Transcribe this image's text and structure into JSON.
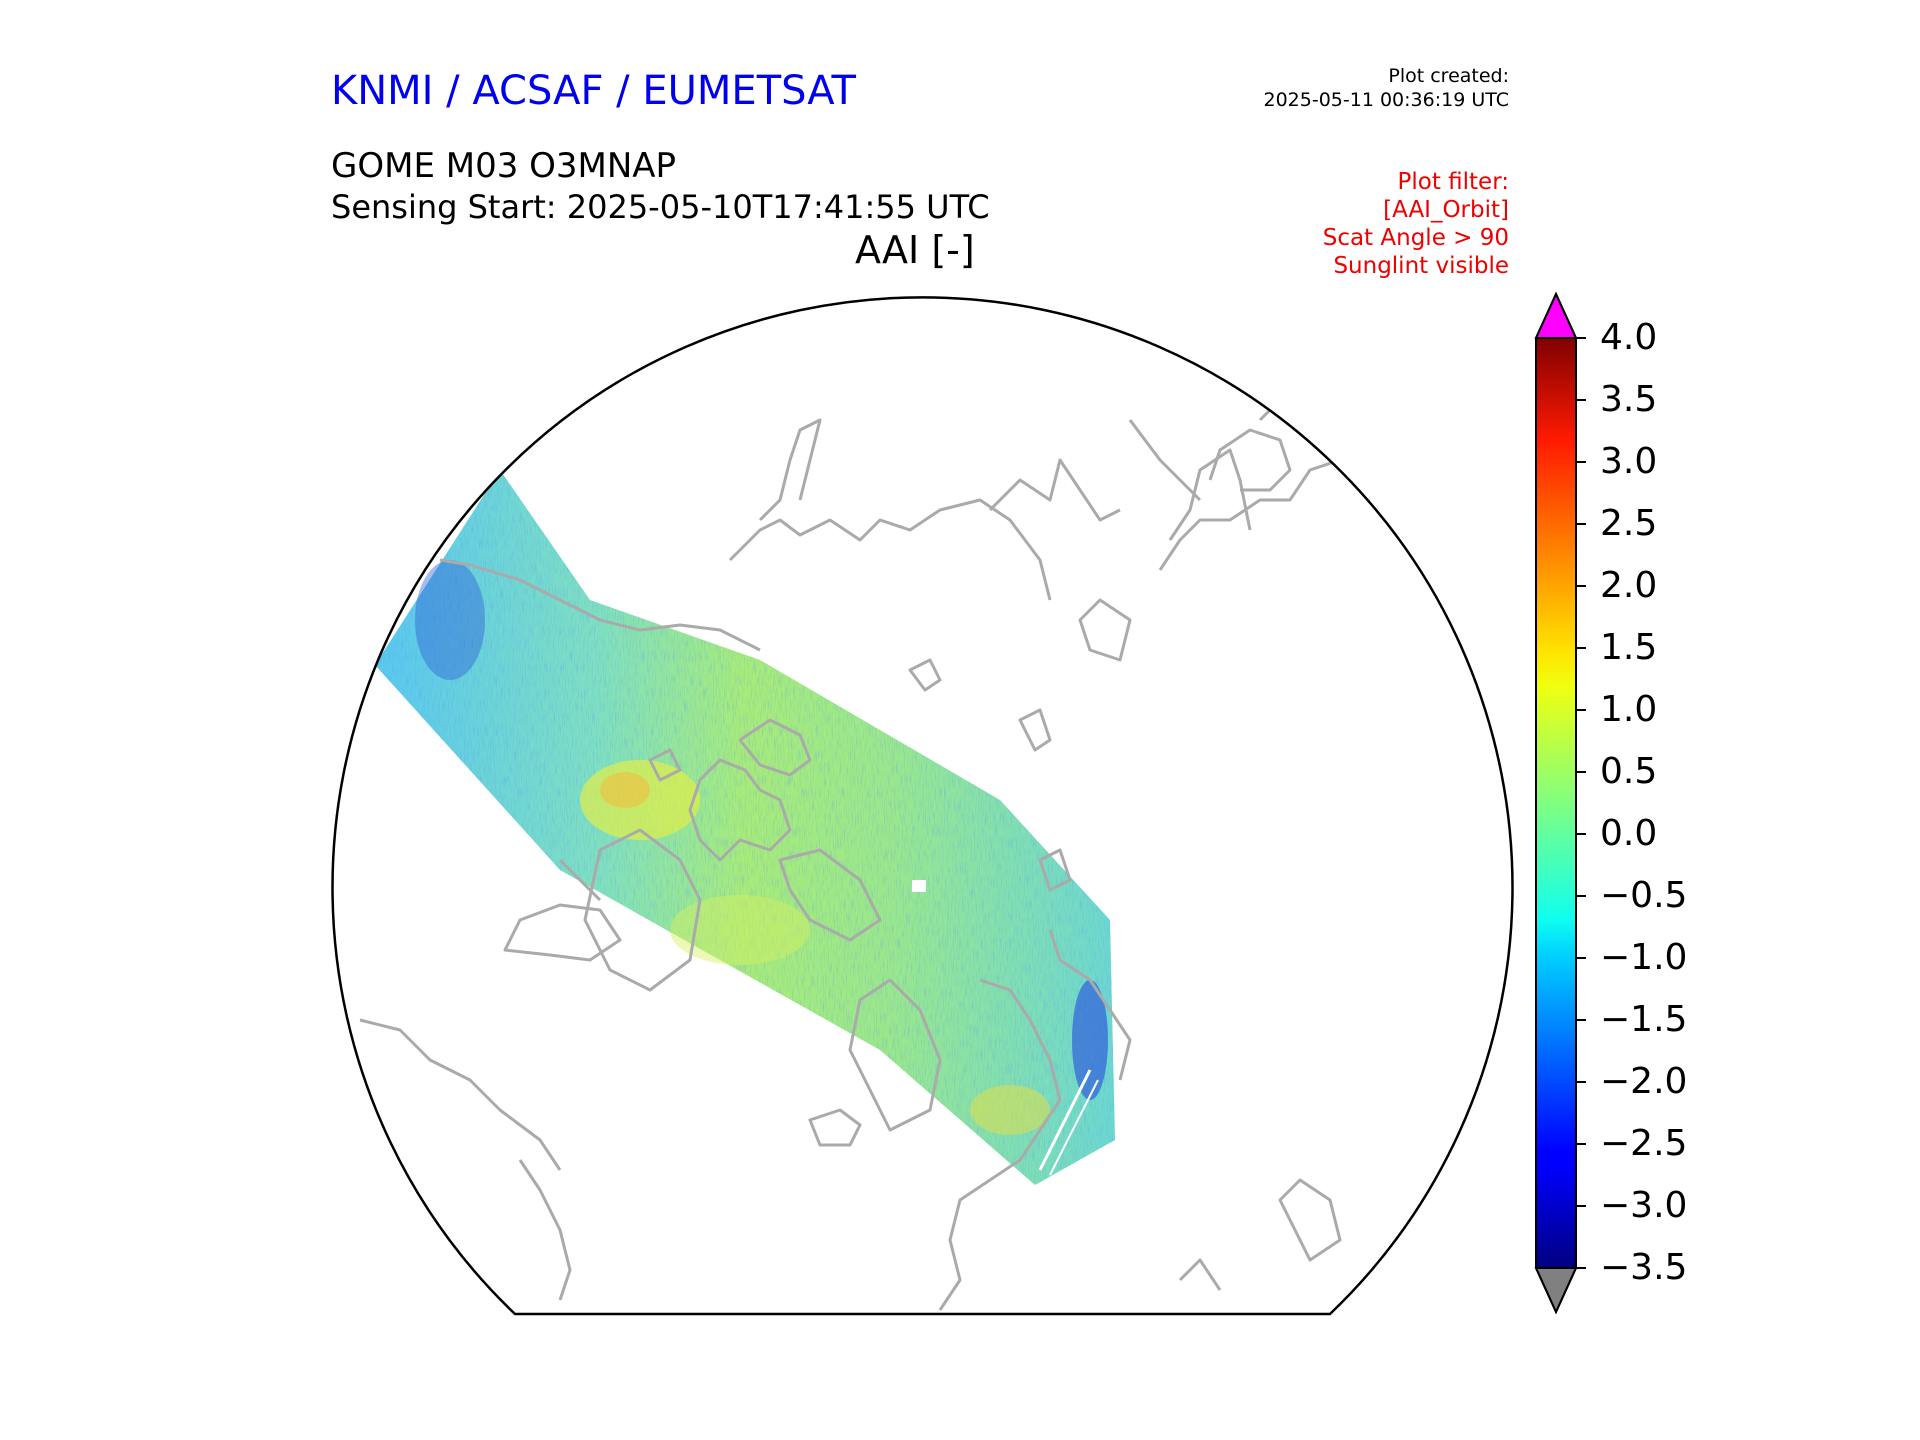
{
  "header": {
    "org": "KNMI / ACSAF / EUMETSAT",
    "created_label": "Plot created:",
    "created_time": "2025-05-11 00:36:19 UTC",
    "product": "GOME M03 O3MNAP",
    "sensing": "Sensing Start: 2025-05-10T17:41:55 UTC",
    "variable": "AAI [-]"
  },
  "filter": {
    "title": "Plot filter:",
    "lines": [
      "[AAI_Orbit]",
      "Scat Angle > 90",
      "Sunglint visible"
    ]
  },
  "colors": {
    "org": "#0000ee",
    "filter": "#ee0000",
    "coast": "#aaaaaa",
    "over": "#ff00ff",
    "under": "#808080"
  },
  "colorbar": {
    "min": -3.5,
    "max": 4.0,
    "colormap": "jet",
    "ticks": [
      "4.0",
      "3.5",
      "3.0",
      "2.5",
      "2.0",
      "1.5",
      "1.0",
      "0.5",
      "0.0",
      "−0.5",
      "−1.0",
      "−1.5",
      "−2.0",
      "−2.5",
      "−3.0",
      "−3.5"
    ]
  },
  "map": {
    "projection": "north polar stereographic",
    "swath_dominant_value_range": "−1.0 to 1.0"
  }
}
